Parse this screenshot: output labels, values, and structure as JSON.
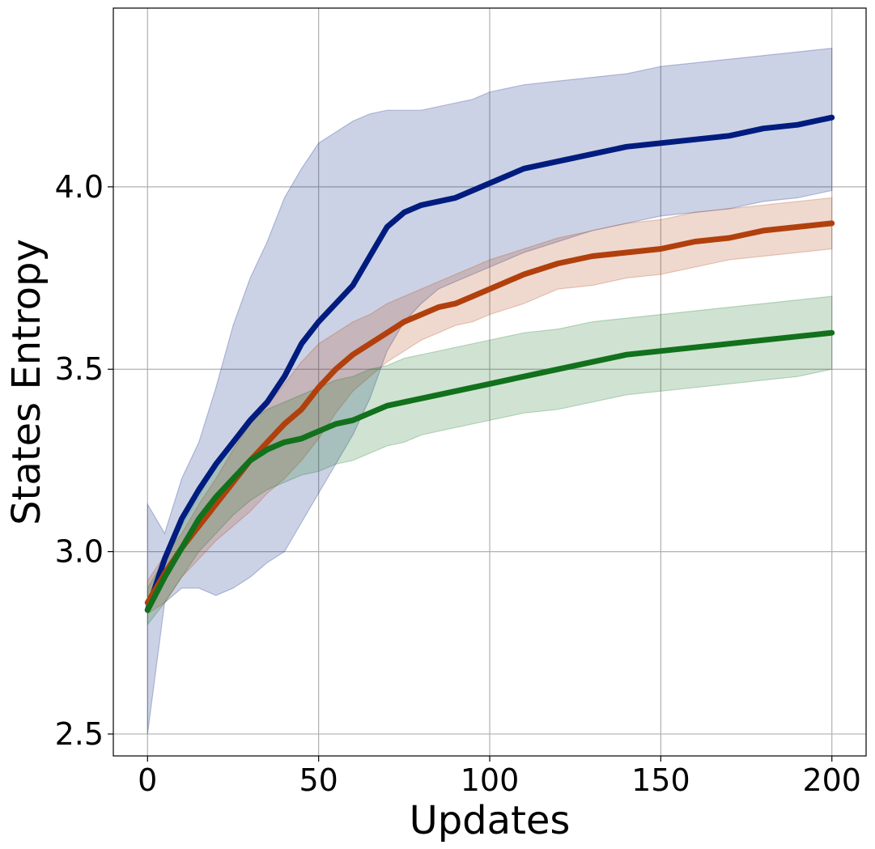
{
  "chart_data": {
    "type": "line",
    "title": "",
    "xlabel": "Updates",
    "ylabel": "States Entropy",
    "xlim": [
      -10,
      210
    ],
    "ylim": [
      2.44,
      4.49
    ],
    "xticks": [
      0,
      50,
      100,
      150,
      200
    ],
    "xtick_labels": [
      "0",
      "50",
      "100",
      "150",
      "200"
    ],
    "yticks": [
      2.5,
      3.0,
      3.5,
      4.0
    ],
    "ytick_labels": [
      "2.5",
      "3.0",
      "3.5",
      "4.0"
    ],
    "grid": true,
    "legend": false,
    "series": [
      {
        "color": "#001c7f",
        "band_alpha": 0.2,
        "x": [
          0,
          5,
          10,
          15,
          20,
          25,
          30,
          35,
          40,
          45,
          50,
          55,
          60,
          65,
          70,
          75,
          80,
          85,
          90,
          95,
          100,
          110,
          120,
          130,
          140,
          150,
          160,
          170,
          180,
          190,
          200
        ],
        "mean": [
          2.84,
          2.98,
          3.09,
          3.17,
          3.24,
          3.3,
          3.36,
          3.41,
          3.48,
          3.57,
          3.63,
          3.68,
          3.73,
          3.81,
          3.89,
          3.93,
          3.95,
          3.96,
          3.97,
          3.99,
          4.01,
          4.05,
          4.07,
          4.09,
          4.11,
          4.12,
          4.13,
          4.14,
          4.16,
          4.17,
          4.19
        ],
        "upper": [
          3.13,
          3.05,
          3.2,
          3.3,
          3.45,
          3.62,
          3.75,
          3.85,
          3.97,
          4.05,
          4.12,
          4.15,
          4.18,
          4.2,
          4.21,
          4.21,
          4.21,
          4.22,
          4.23,
          4.24,
          4.26,
          4.28,
          4.29,
          4.3,
          4.31,
          4.33,
          4.34,
          4.35,
          4.36,
          4.37,
          4.38
        ],
        "lower": [
          2.5,
          2.86,
          2.9,
          2.9,
          2.88,
          2.9,
          2.93,
          2.97,
          3.0,
          3.08,
          3.16,
          3.24,
          3.32,
          3.42,
          3.55,
          3.63,
          3.68,
          3.72,
          3.74,
          3.76,
          3.78,
          3.82,
          3.85,
          3.88,
          3.9,
          3.92,
          3.93,
          3.94,
          3.96,
          3.97,
          3.99
        ]
      },
      {
        "color": "#b1400d",
        "band_alpha": 0.2,
        "x": [
          0,
          5,
          10,
          15,
          20,
          25,
          30,
          35,
          40,
          45,
          50,
          55,
          60,
          65,
          70,
          75,
          80,
          85,
          90,
          95,
          100,
          110,
          120,
          130,
          140,
          150,
          160,
          170,
          180,
          190,
          200
        ],
        "mean": [
          2.86,
          2.94,
          3.01,
          3.07,
          3.13,
          3.19,
          3.25,
          3.3,
          3.35,
          3.39,
          3.45,
          3.5,
          3.54,
          3.57,
          3.6,
          3.63,
          3.65,
          3.67,
          3.68,
          3.7,
          3.72,
          3.76,
          3.79,
          3.81,
          3.82,
          3.83,
          3.85,
          3.86,
          3.88,
          3.89,
          3.9
        ],
        "upper": [
          2.92,
          2.99,
          3.05,
          3.13,
          3.2,
          3.28,
          3.35,
          3.4,
          3.46,
          3.52,
          3.57,
          3.6,
          3.63,
          3.65,
          3.68,
          3.7,
          3.72,
          3.74,
          3.76,
          3.78,
          3.8,
          3.83,
          3.86,
          3.88,
          3.9,
          3.91,
          3.93,
          3.94,
          3.95,
          3.96,
          3.97
        ],
        "lower": [
          2.83,
          2.86,
          2.93,
          2.98,
          3.03,
          3.07,
          3.11,
          3.16,
          3.2,
          3.25,
          3.31,
          3.38,
          3.44,
          3.48,
          3.52,
          3.55,
          3.58,
          3.6,
          3.62,
          3.63,
          3.65,
          3.68,
          3.72,
          3.73,
          3.75,
          3.76,
          3.78,
          3.8,
          3.81,
          3.82,
          3.83
        ]
      },
      {
        "color": "#12711c",
        "band_alpha": 0.2,
        "x": [
          0,
          5,
          10,
          15,
          20,
          25,
          30,
          35,
          40,
          45,
          50,
          55,
          60,
          65,
          70,
          75,
          80,
          85,
          90,
          95,
          100,
          110,
          120,
          130,
          140,
          150,
          160,
          170,
          180,
          190,
          200
        ],
        "mean": [
          2.84,
          2.93,
          3.01,
          3.09,
          3.15,
          3.2,
          3.25,
          3.28,
          3.3,
          3.31,
          3.33,
          3.35,
          3.36,
          3.38,
          3.4,
          3.41,
          3.42,
          3.43,
          3.44,
          3.45,
          3.46,
          3.48,
          3.5,
          3.52,
          3.54,
          3.55,
          3.56,
          3.57,
          3.58,
          3.59,
          3.6
        ],
        "upper": [
          2.9,
          2.98,
          3.07,
          3.15,
          3.24,
          3.31,
          3.36,
          3.39,
          3.41,
          3.43,
          3.45,
          3.47,
          3.48,
          3.5,
          3.51,
          3.53,
          3.54,
          3.55,
          3.56,
          3.57,
          3.58,
          3.6,
          3.61,
          3.63,
          3.64,
          3.65,
          3.66,
          3.67,
          3.68,
          3.69,
          3.7
        ],
        "lower": [
          2.8,
          2.86,
          2.93,
          3.0,
          3.05,
          3.1,
          3.14,
          3.17,
          3.19,
          3.21,
          3.22,
          3.24,
          3.25,
          3.27,
          3.29,
          3.3,
          3.32,
          3.33,
          3.34,
          3.35,
          3.36,
          3.38,
          3.39,
          3.41,
          3.43,
          3.44,
          3.45,
          3.46,
          3.47,
          3.48,
          3.5
        ]
      }
    ]
  }
}
